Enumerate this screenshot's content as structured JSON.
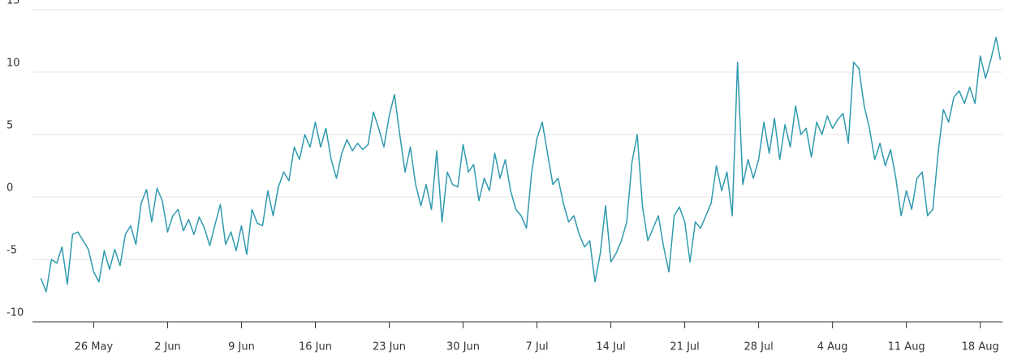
{
  "chart_data": {
    "type": "line",
    "x": [
      141,
      141.5,
      142,
      142.5,
      143,
      143.5,
      144,
      144.5,
      145,
      145.5,
      146,
      146.5,
      147,
      147.5,
      148,
      148.5,
      149,
      149.5,
      150,
      150.5,
      151,
      151.5,
      152,
      152.5,
      153,
      153.5,
      154,
      154.5,
      155,
      155.5,
      156,
      156.5,
      157,
      157.5,
      158,
      158.5,
      159,
      159.5,
      160,
      160.5,
      161,
      161.5,
      162,
      162.5,
      163,
      163.5,
      164,
      164.5,
      165,
      165.5,
      166,
      166.5,
      167,
      167.5,
      168,
      168.5,
      169,
      169.5,
      170,
      170.5,
      171,
      171.5,
      172,
      172.5,
      173,
      173.5,
      174,
      174.5,
      175,
      175.5,
      176,
      176.5,
      177,
      177.5,
      178,
      178.5,
      179,
      179.5,
      180,
      180.5,
      181,
      181.5,
      182,
      182.5,
      183,
      183.5,
      184,
      184.5,
      185,
      185.5,
      186,
      186.5,
      187,
      187.5,
      188,
      188.5,
      189,
      189.5,
      190,
      190.5,
      191,
      191.5,
      192,
      192.5,
      193,
      193.5,
      194,
      194.5,
      195,
      195.5,
      196,
      196.5,
      197,
      197.5,
      198,
      198.5,
      199,
      199.5,
      200,
      200.5,
      201,
      201.5,
      202,
      202.5,
      203,
      203.5,
      204,
      204.5,
      205,
      205.5,
      206,
      206.5,
      207,
      207.5,
      208,
      208.5,
      209,
      209.5,
      210,
      210.5,
      211,
      211.5,
      212,
      212.5,
      213,
      213.5,
      214,
      214.5,
      215,
      215.5,
      216,
      216.5,
      217,
      217.5,
      218,
      218.5,
      219,
      219.5,
      220,
      220.5,
      221,
      221.5,
      222,
      222.5,
      223,
      223.5,
      224,
      224.5,
      225,
      225.5,
      226,
      226.5,
      227,
      227.5,
      228,
      228.5,
      229,
      229.5,
      230,
      230.5,
      231,
      231.5,
      231.9
    ],
    "values": [
      -6.5,
      -7.6,
      -5.0,
      -5.3,
      -4.0,
      -7.0,
      -3.0,
      -2.8,
      -3.5,
      -4.2,
      -6.0,
      -6.8,
      -4.3,
      -5.8,
      -4.2,
      -5.5,
      -3.0,
      -2.3,
      -3.8,
      -0.5,
      0.6,
      -2.0,
      0.7,
      -0.3,
      -2.8,
      -1.5,
      -1.0,
      -2.7,
      -1.8,
      -3.0,
      -1.6,
      -2.5,
      -3.9,
      -2.2,
      -0.6,
      -3.8,
      -2.8,
      -4.3,
      -2.3,
      -4.6,
      -1.0,
      -2.1,
      -2.3,
      0.5,
      -1.5,
      0.8,
      2.0,
      1.3,
      4.0,
      3.0,
      5.0,
      4.0,
      6.0,
      4.0,
      5.5,
      3.0,
      1.5,
      3.5,
      4.6,
      3.7,
      4.3,
      3.8,
      4.2,
      6.8,
      5.5,
      4.0,
      6.5,
      8.2,
      5.0,
      2.0,
      4.0,
      1.0,
      -0.7,
      1.0,
      -1.0,
      3.7,
      -2.0,
      2.0,
      1.0,
      0.8,
      4.2,
      2.0,
      2.6,
      -0.3,
      1.5,
      0.5,
      3.5,
      1.5,
      3.0,
      0.5,
      -1.0,
      -1.5,
      -2.5,
      2.0,
      4.7,
      6.0,
      3.5,
      1.0,
      1.5,
      -0.5,
      -2.0,
      -1.5,
      -3.0,
      -4.0,
      -3.5,
      -6.8,
      -4.5,
      -0.7,
      -5.2,
      -4.5,
      -3.5,
      -2.0,
      2.8,
      5.0,
      -0.8,
      -3.5,
      -2.5,
      -1.5,
      -4.0,
      -6.0,
      -1.5,
      -0.8,
      -2.0,
      -5.2,
      -2.0,
      -2.5,
      -1.5,
      -0.5,
      2.5,
      0.5,
      2.0,
      -1.5,
      10.8,
      1.0,
      3.0,
      1.5,
      3.0,
      6.0,
      3.5,
      6.3,
      3.0,
      5.8,
      4.0,
      7.3,
      5.0,
      5.5,
      3.2,
      6.0,
      5.0,
      6.5,
      5.5,
      6.2,
      6.7,
      4.3,
      10.8,
      10.3,
      7.3,
      5.5,
      3.0,
      4.3,
      2.5,
      3.8,
      1.5,
      -1.5,
      0.5,
      -1.0,
      1.5,
      2.0,
      -1.5,
      -1.0,
      3.5,
      7.0,
      6.0,
      8.0,
      8.5,
      7.5,
      8.8,
      7.5,
      11.3,
      9.5,
      11.0,
      12.8,
      11.0
    ],
    "color": "#2f9aae",
    "xlim": [
      140.2,
      232.1
    ],
    "xticks": [
      {
        "value": 146,
        "label": "26 May"
      },
      {
        "value": 153,
        "label": "2 Jun"
      },
      {
        "value": 160,
        "label": "9 Jun"
      },
      {
        "value": 167,
        "label": "16 Jun"
      },
      {
        "value": 174,
        "label": "23 Jun"
      },
      {
        "value": 181,
        "label": "30 Jun"
      },
      {
        "value": 188,
        "label": "7 Jul"
      },
      {
        "value": 195,
        "label": "14 Jul"
      },
      {
        "value": 202,
        "label": "21 Jul"
      },
      {
        "value": 209,
        "label": "28 Jul"
      },
      {
        "value": 216,
        "label": "4 Aug"
      },
      {
        "value": 223,
        "label": "11 Aug"
      },
      {
        "value": 230,
        "label": "18 Aug"
      }
    ],
    "ylim": [
      -10,
      15
    ],
    "yticks": [
      -10,
      -5,
      0,
      5,
      10,
      15
    ],
    "grid": true
  }
}
